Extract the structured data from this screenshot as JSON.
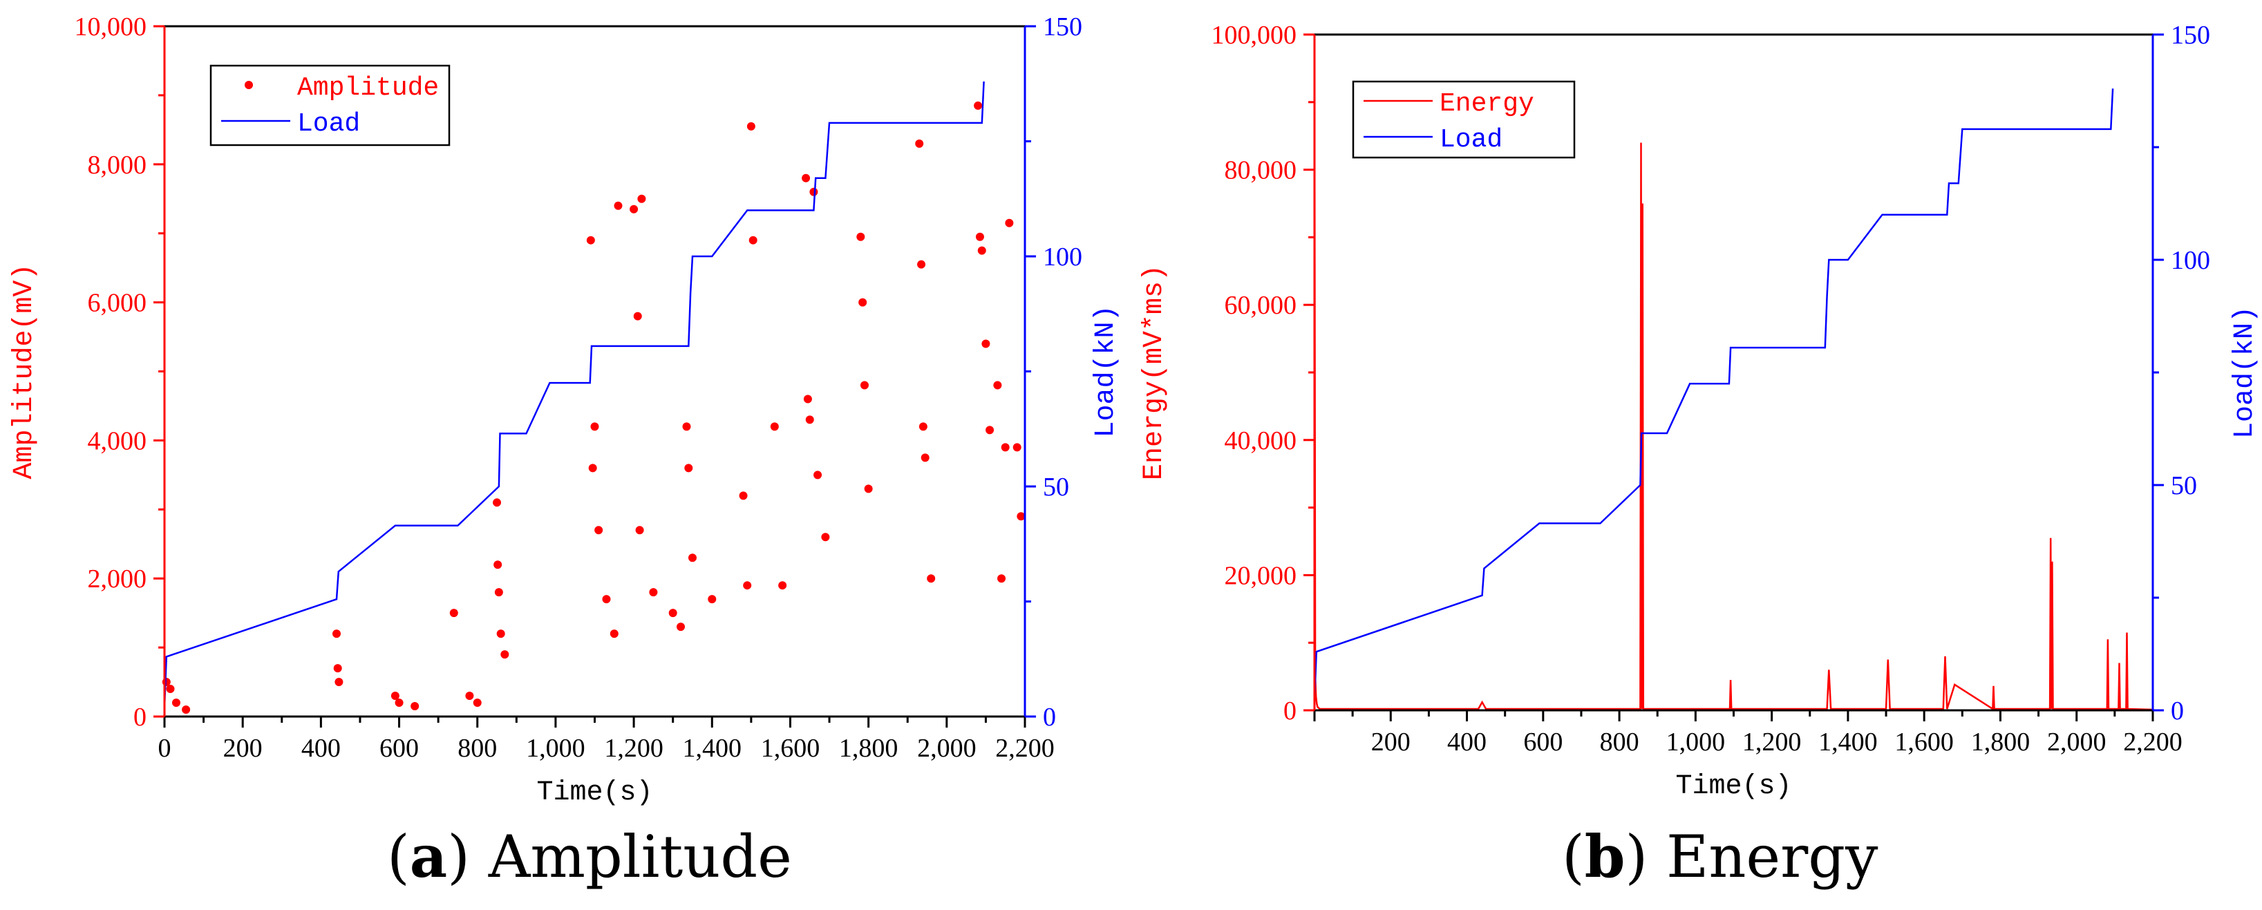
{
  "figure": {
    "panels": [
      {
        "id": "a",
        "caption_letter": "a",
        "caption_text": "Amplitude",
        "caption_open": "(",
        "caption_close": ")"
      },
      {
        "id": "b",
        "caption_letter": "b",
        "caption_text": "Energy",
        "caption_open": "(",
        "caption_close": ")"
      }
    ]
  },
  "colors": {
    "left_axis": "#ff0000",
    "right_axis": "#0000ff",
    "frame": "#000000"
  },
  "chart_data": [
    {
      "type": "scatter",
      "panel": "a",
      "xlabel": "Time(s)",
      "ylabel": "Amplitude(mV)",
      "y2label": "Load(kN)",
      "xlim": [
        0,
        2200
      ],
      "ylim": [
        0,
        10000
      ],
      "y2lim": [
        0,
        150
      ],
      "x_ticks": [
        "0",
        "200",
        "400",
        "600",
        "800",
        "1,000",
        "1,200",
        "1,400",
        "1,600",
        "1,800",
        "2,000",
        "2,200"
      ],
      "y_ticks": [
        "0",
        "2,000",
        "4,000",
        "6,000",
        "8,000",
        "10,000"
      ],
      "y2_ticks": [
        "0",
        "50",
        "100",
        "150"
      ],
      "legend": [
        "Amplitude",
        "Load"
      ],
      "legend_position": "top-left",
      "series": [
        {
          "name": "Amplitude",
          "kind": "points",
          "axis": "left",
          "color": "#ff0000",
          "x": [
            5,
            15,
            30,
            55,
            440,
            443,
            446,
            590,
            600,
            640,
            740,
            780,
            800,
            850,
            852,
            855,
            860,
            870,
            1090,
            1095,
            1100,
            1110,
            1130,
            1150,
            1160,
            1200,
            1210,
            1215,
            1220,
            1250,
            1300,
            1320,
            1335,
            1340,
            1350,
            1400,
            1480,
            1490,
            1500,
            1505,
            1560,
            1580,
            1640,
            1645,
            1650,
            1660,
            1670,
            1690,
            1780,
            1785,
            1790,
            1800,
            1930,
            1935,
            1940,
            1945,
            1960,
            2080,
            2085,
            2090,
            2100,
            2110,
            2130,
            2140,
            2150,
            2160,
            2180,
            2190
          ],
          "y": [
            500,
            400,
            200,
            100,
            1200,
            700,
            500,
            300,
            200,
            150,
            1500,
            300,
            200,
            3100,
            2200,
            1800,
            1200,
            900,
            6900,
            3600,
            4200,
            2700,
            1700,
            1200,
            7400,
            7350,
            5800,
            2700,
            7500,
            1800,
            1500,
            1300,
            4200,
            3600,
            2300,
            1700,
            3200,
            1900,
            8550,
            6900,
            4200,
            1900,
            7800,
            4600,
            4300,
            7600,
            3500,
            2600,
            6950,
            6000,
            4800,
            3300,
            8300,
            6550,
            4200,
            3750,
            2000,
            8850,
            6950,
            6750,
            5400,
            4150,
            4800,
            2000,
            3900,
            7150,
            3900,
            2900
          ]
        },
        {
          "name": "Load",
          "kind": "step-line",
          "axis": "right",
          "color": "#0000ff",
          "x": [
            0,
            5,
            440,
            445,
            590,
            750,
            855,
            858,
            925,
            985,
            1088,
            1092,
            1340,
            1345,
            1350,
            1400,
            1490,
            1495,
            1660,
            1665,
            1690,
            1700,
            2090,
            2095
          ],
          "y": [
            2,
            13,
            25.5,
            31.5,
            41.5,
            41.5,
            50,
            61.5,
            61.5,
            72.5,
            72.5,
            80.5,
            80.5,
            92,
            100,
            100,
            110,
            110,
            110,
            117,
            117,
            129,
            129,
            138
          ]
        }
      ]
    },
    {
      "type": "line",
      "panel": "b",
      "xlabel": "Time(s)",
      "ylabel": "Energy(mV*ms)",
      "y2label": "Load(kN)",
      "xlim": [
        0,
        2200
      ],
      "ylim": [
        0,
        100000
      ],
      "y2lim": [
        0,
        150
      ],
      "x_ticks": [
        "200",
        "400",
        "600",
        "800",
        "1,000",
        "1,200",
        "1,400",
        "1,600",
        "1,800",
        "2,000",
        "2,200"
      ],
      "y_ticks": [
        "0",
        "20,000",
        "40,000",
        "60,000",
        "80,000",
        "100,000"
      ],
      "y2_ticks": [
        "0",
        "50",
        "100",
        "150"
      ],
      "legend": [
        "Energy",
        "Load"
      ],
      "legend_position": "top-left",
      "series": [
        {
          "name": "Energy",
          "kind": "line",
          "axis": "left",
          "color": "#ff0000",
          "x": [
            0,
            2,
            4,
            6,
            8,
            10,
            12,
            14,
            430,
            440,
            450,
            855,
            857,
            859,
            861,
            863,
            1090,
            1092,
            1094,
            1150,
            1300,
            1345,
            1350,
            1355,
            1500,
            1505,
            1510,
            1650,
            1655,
            1660,
            1680,
            1780,
            1782,
            1784,
            1930,
            1932,
            1934,
            1936,
            1938,
            2080,
            2082,
            2084,
            2110,
            2112,
            2114,
            2130,
            2132,
            2134,
            2200
          ],
          "y": [
            100000,
            5000,
            2000,
            1000,
            500,
            400,
            300,
            200,
            200,
            1200,
            200,
            200,
            84000,
            200,
            75000,
            200,
            200,
            4500,
            200,
            200,
            200,
            200,
            6000,
            200,
            200,
            7500,
            200,
            200,
            8000,
            200,
            3800,
            200,
            3600,
            200,
            200,
            25500,
            200,
            22000,
            200,
            200,
            10500,
            200,
            200,
            7000,
            200,
            200,
            11500,
            200,
            100
          ]
        },
        {
          "name": "Load",
          "kind": "step-line",
          "axis": "right",
          "color": "#0000ff",
          "x": [
            0,
            5,
            440,
            445,
            590,
            750,
            855,
            858,
            925,
            985,
            1088,
            1092,
            1340,
            1345,
            1350,
            1400,
            1490,
            1495,
            1660,
            1665,
            1690,
            1700,
            2090,
            2095
          ],
          "y": [
            2,
            13,
            25.5,
            31.5,
            41.5,
            41.5,
            50,
            61.5,
            61.5,
            72.5,
            72.5,
            80.5,
            80.5,
            92,
            100,
            100,
            110,
            110,
            110,
            117,
            117,
            129,
            129,
            138
          ]
        }
      ]
    }
  ]
}
